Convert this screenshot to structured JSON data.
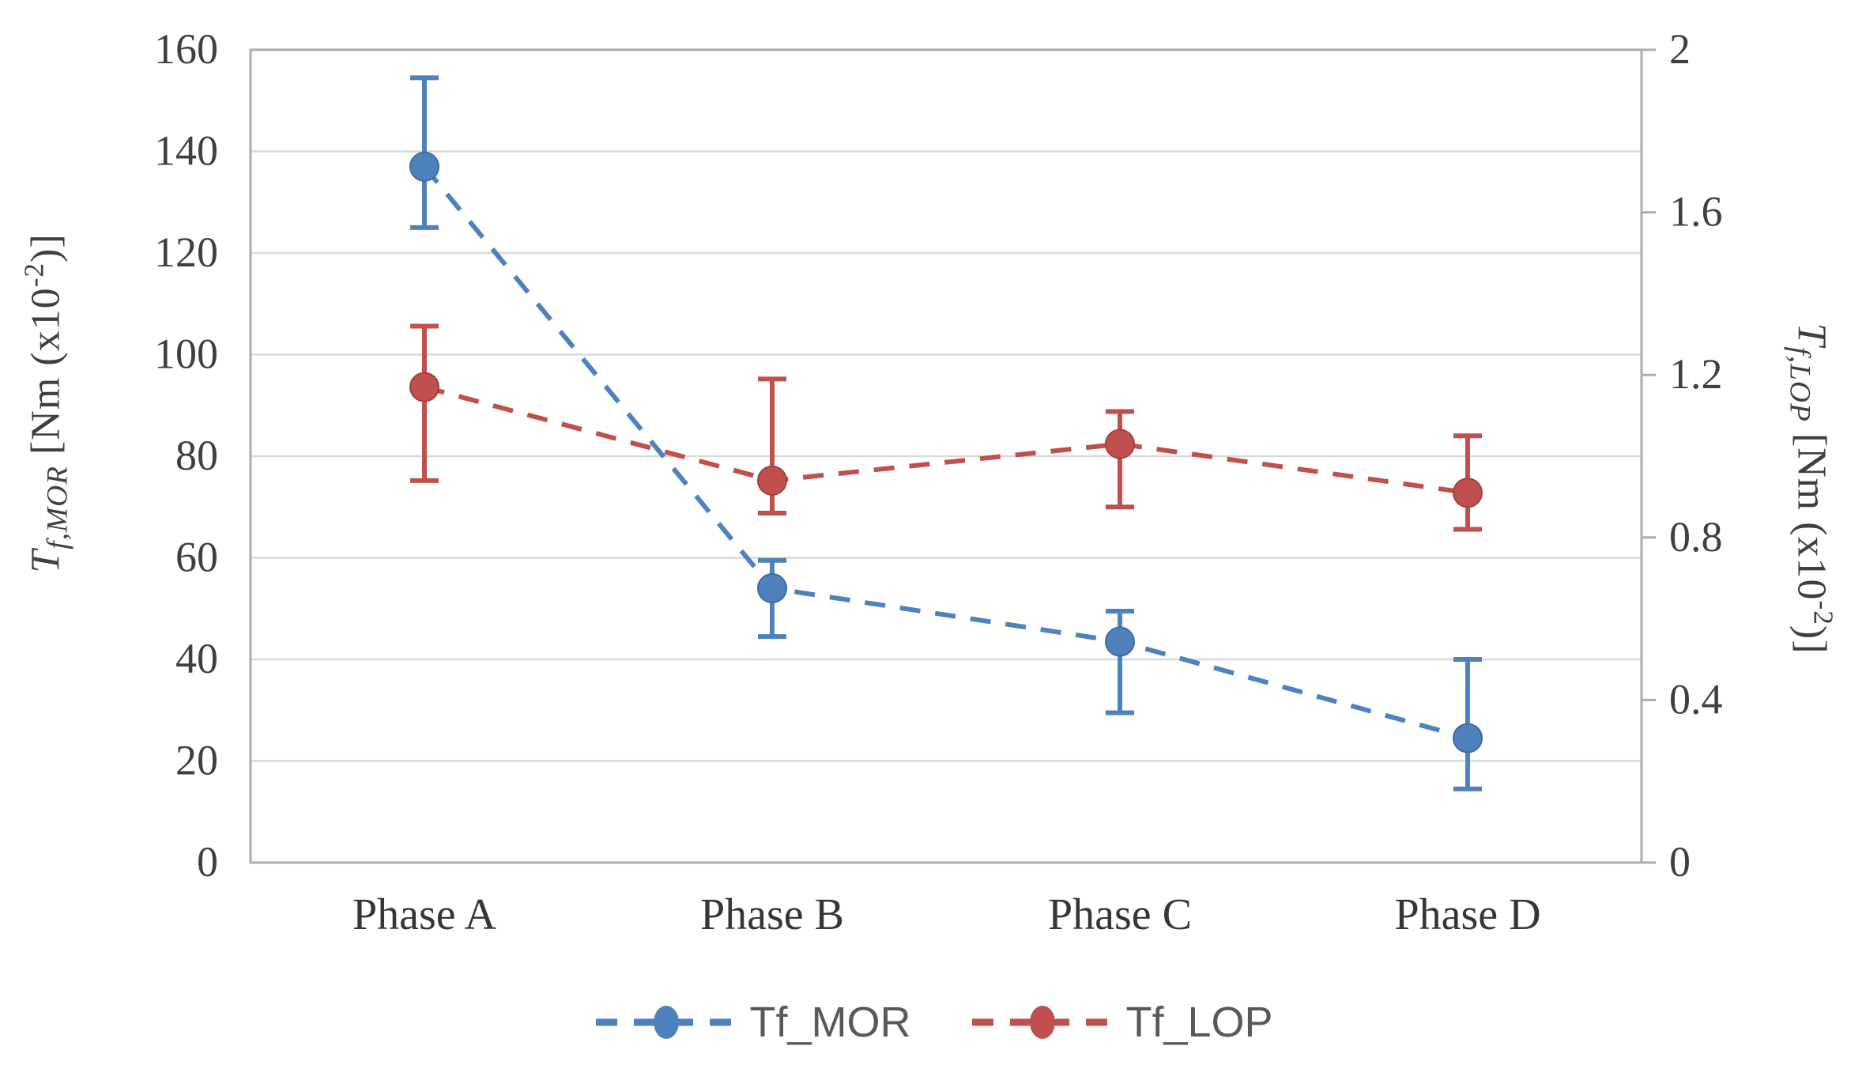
{
  "chart_data": {
    "type": "line",
    "subtype": "point-series-with-error-bars",
    "categories": [
      "Phase A",
      "Phase B",
      "Phase C",
      "Phase D"
    ],
    "series": [
      {
        "name": "Tf_MOR",
        "axis": "left",
        "color": "#4F81BD",
        "edge": "#3A6BA8",
        "values": [
          137,
          54,
          43.5,
          24.5
        ],
        "err_low": [
          125,
          44.5,
          29.5,
          14.5
        ],
        "err_high": [
          154.5,
          59.5,
          49.5,
          40
        ]
      },
      {
        "name": "Tf_LOP",
        "axis": "right",
        "color": "#C0504D",
        "edge": "#A23F3C",
        "values": [
          1.17,
          0.94,
          1.03,
          0.91
        ],
        "err_low": [
          0.94,
          0.86,
          0.875,
          0.82
        ],
        "err_high": [
          1.32,
          1.19,
          1.11,
          1.05
        ]
      }
    ],
    "left_axis": {
      "min": 0,
      "max": 160,
      "ticks": [
        "0",
        "20",
        "40",
        "60",
        "80",
        "100",
        "120",
        "140",
        "160"
      ],
      "title": {
        "sym": "T",
        "sub": "f,MOR",
        "unit_pre": " [Nm (x10",
        "exp": "-2",
        "unit_suf": ")]"
      }
    },
    "right_axis": {
      "min": 0,
      "max": 2,
      "ticks": [
        "0",
        "0.4",
        "0.8",
        "1.2",
        "1.6",
        "2"
      ],
      "title": {
        "sym": "T",
        "sub": "f,LOP",
        "unit_pre": " [Nm (x10",
        "exp": "-2",
        "unit_suf": ")]"
      }
    },
    "grid": true,
    "legend_position": "bottom",
    "legend_items": [
      {
        "label": "Tf_MOR",
        "color": "#4F81BD"
      },
      {
        "label": "Tf_LOP",
        "color": "#C0504D"
      }
    ]
  },
  "styles": {
    "background": "#FFFFFF",
    "grid_color": "#D9D9D9",
    "border_color": "#ACACAC",
    "tick_text_color": "#3F3F3F",
    "category_text_color": "#363636",
    "legend_text_color": "#595959"
  }
}
